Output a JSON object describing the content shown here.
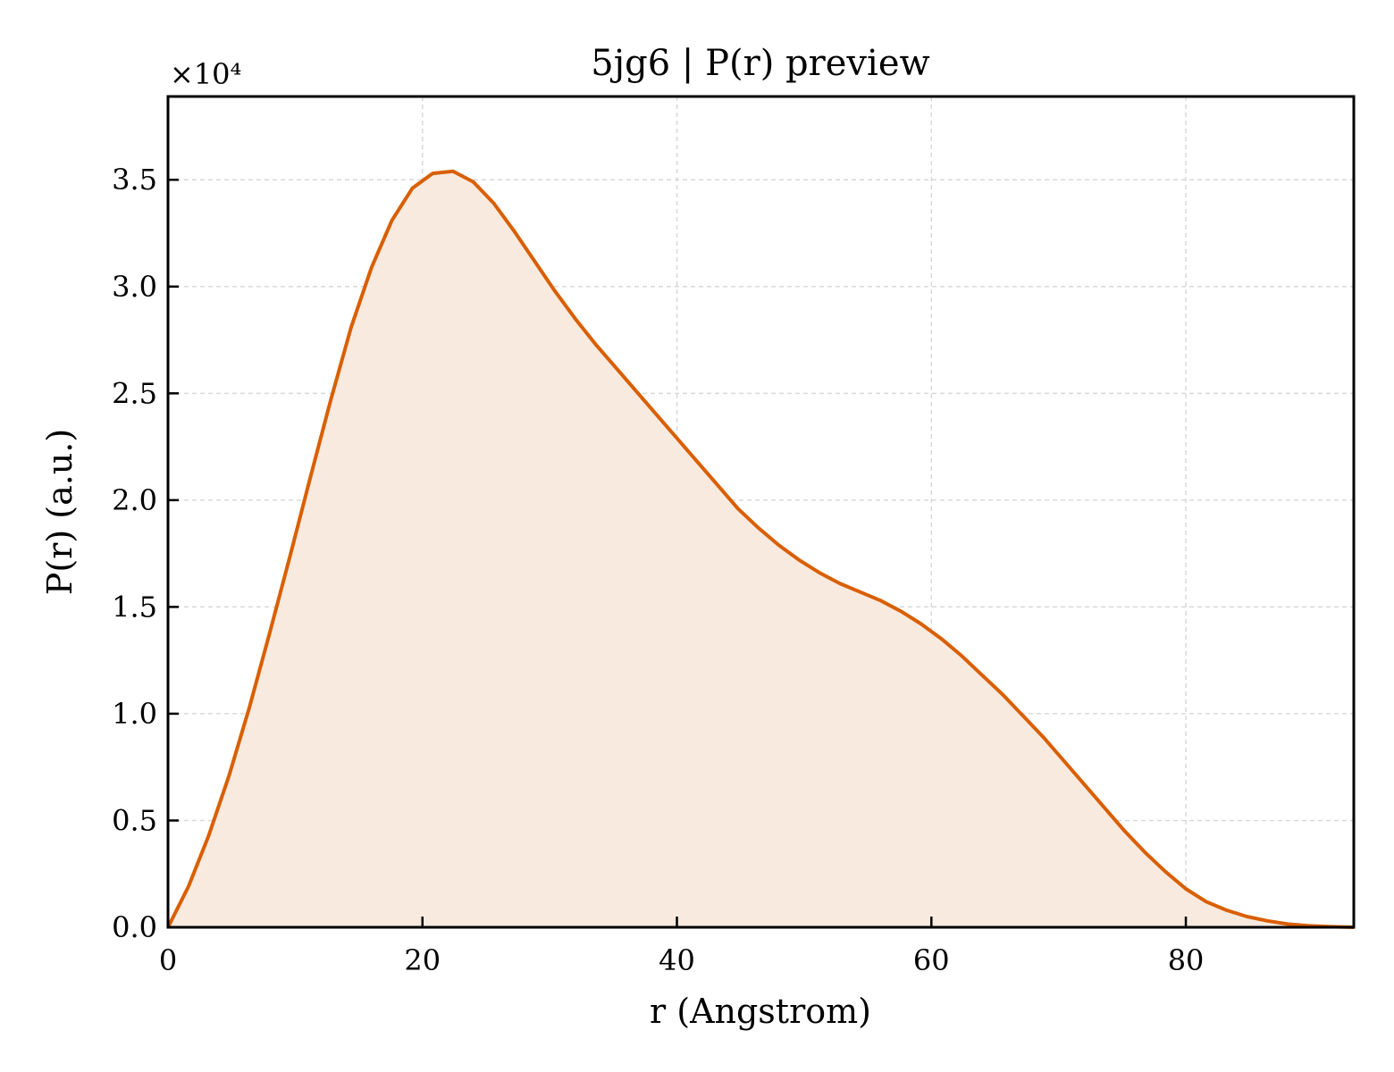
{
  "chart_data": {
    "type": "area",
    "title": "5jg6 | P(r) preview",
    "xlabel": "r (Angstrom)",
    "ylabel": "P(r) (a.u.)",
    "y_multiplier": "×10⁴",
    "xlim": [
      0,
      93.2
    ],
    "ylim": [
      0,
      3.89
    ],
    "y_scale_factor": 10000,
    "grid": true,
    "xticks": [
      0,
      20,
      40,
      60,
      80
    ],
    "xtick_labels": [
      "0",
      "20",
      "40",
      "60",
      "80"
    ],
    "yticks": [
      0,
      0.5,
      1.0,
      1.5,
      2.0,
      2.5,
      3.0,
      3.5
    ],
    "ytick_labels": [
      "0.0",
      "0.5",
      "1.0",
      "1.5",
      "2.0",
      "2.5",
      "3.0",
      "3.5"
    ],
    "colors": {
      "line": "#d95f02",
      "fill": "#f9eae0",
      "grid": "#d9d9d9"
    },
    "series": [
      {
        "x": [
          0,
          1.6,
          3.2,
          4.8,
          6.4,
          8.0,
          9.6,
          11.2,
          12.8,
          14.4,
          16.0,
          17.6,
          19.2,
          20.8,
          22.4,
          24.0,
          25.6,
          27.2,
          28.8,
          30.4,
          32.0,
          33.6,
          35.2,
          36.8,
          38.4,
          40.0,
          41.6,
          43.2,
          44.8,
          46.4,
          48.0,
          49.6,
          51.2,
          52.8,
          54.4,
          56.0,
          57.6,
          59.2,
          60.8,
          62.4,
          64.0,
          65.6,
          67.2,
          68.8,
          70.4,
          72.0,
          73.6,
          75.2,
          76.8,
          78.4,
          80.0,
          81.6,
          83.2,
          84.8,
          86.4,
          88.0,
          89.6,
          91.2,
          93.2
        ],
        "y": [
          0.0,
          0.19,
          0.43,
          0.71,
          1.03,
          1.38,
          1.74,
          2.11,
          2.47,
          2.81,
          3.09,
          3.31,
          3.46,
          3.53,
          3.54,
          3.49,
          3.39,
          3.26,
          3.12,
          2.98,
          2.85,
          2.73,
          2.62,
          2.51,
          2.4,
          2.29,
          2.18,
          2.07,
          1.96,
          1.87,
          1.79,
          1.72,
          1.66,
          1.61,
          1.57,
          1.53,
          1.48,
          1.42,
          1.35,
          1.27,
          1.18,
          1.09,
          0.99,
          0.89,
          0.78,
          0.67,
          0.56,
          0.45,
          0.35,
          0.26,
          0.18,
          0.12,
          0.08,
          0.05,
          0.03,
          0.015,
          0.007,
          0.003,
          0.0
        ]
      }
    ]
  }
}
